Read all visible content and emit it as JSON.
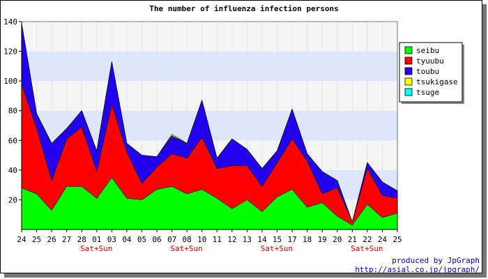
{
  "chart_data": {
    "type": "area",
    "title": "The number of influenza infection persons",
    "xlabel": "",
    "ylabel": "",
    "ylim": [
      0,
      140
    ],
    "yticks": [
      20,
      40,
      60,
      80,
      100,
      120,
      140
    ],
    "grid": true,
    "stacked": true,
    "legend_position": "right",
    "categories": [
      "24",
      "25",
      "26",
      "27",
      "28",
      "01",
      "03",
      "04",
      "05",
      "06",
      "07",
      "08",
      "10",
      "11",
      "12",
      "13",
      "14",
      "15",
      "17",
      "18",
      "19",
      "20",
      "21",
      "22",
      "24",
      "25"
    ],
    "weekend_labels": [
      {
        "category_index": 4,
        "text": "Sat+Sun"
      },
      {
        "category_index": 10,
        "text": "Sat+Sun"
      },
      {
        "category_index": 16,
        "text": "Sat+Sun"
      },
      {
        "category_index": 22,
        "text": "Sat+Sun"
      }
    ],
    "series": [
      {
        "name": "seibu",
        "color": "#00ff00",
        "values": [
          28,
          24,
          13,
          29,
          29,
          21,
          35,
          21,
          20,
          27,
          29,
          24,
          27,
          21,
          14,
          20,
          12,
          22,
          27,
          15,
          18,
          9,
          3,
          17,
          8,
          11
        ]
      },
      {
        "name": "tyuubu",
        "color": "#ff0000",
        "values": [
          70,
          44,
          20,
          32,
          40,
          18,
          49,
          31,
          11,
          15,
          22,
          24,
          35,
          20,
          29,
          23,
          17,
          23,
          34,
          31,
          6,
          19,
          2,
          24,
          15,
          10
        ]
      },
      {
        "name": "toubu",
        "color": "#2200ee",
        "values": [
          41,
          10,
          25,
          7,
          11,
          14,
          29,
          6,
          19,
          7,
          12,
          10,
          25,
          7,
          18,
          11,
          12,
          8,
          20,
          5,
          15,
          5,
          0,
          4,
          9,
          5
        ]
      },
      {
        "name": "tsukigase",
        "color": "#ffff00",
        "values": [
          0,
          0,
          0,
          0,
          0,
          0,
          0,
          0,
          0,
          0,
          1,
          0,
          0,
          0,
          0,
          0,
          0,
          0,
          0,
          0,
          0,
          0,
          0,
          0,
          0,
          0
        ]
      },
      {
        "name": "tsuge",
        "color": "#00ffff",
        "values": [
          0,
          0,
          0,
          0,
          0,
          0,
          0,
          0,
          0,
          0,
          0,
          0,
          0,
          0,
          0,
          0,
          0,
          0,
          0,
          0,
          0,
          0,
          0,
          0,
          0,
          0
        ]
      }
    ]
  },
  "footer": {
    "line1": "produced by JpGraph",
    "line2": "http://asial.co.jp/jpgraph/"
  },
  "colors": {
    "band_light": "#f5f5f5",
    "band_blue": "#dde6fb",
    "weekend_text": "#dd0000",
    "footer_text": "#0000cc"
  }
}
